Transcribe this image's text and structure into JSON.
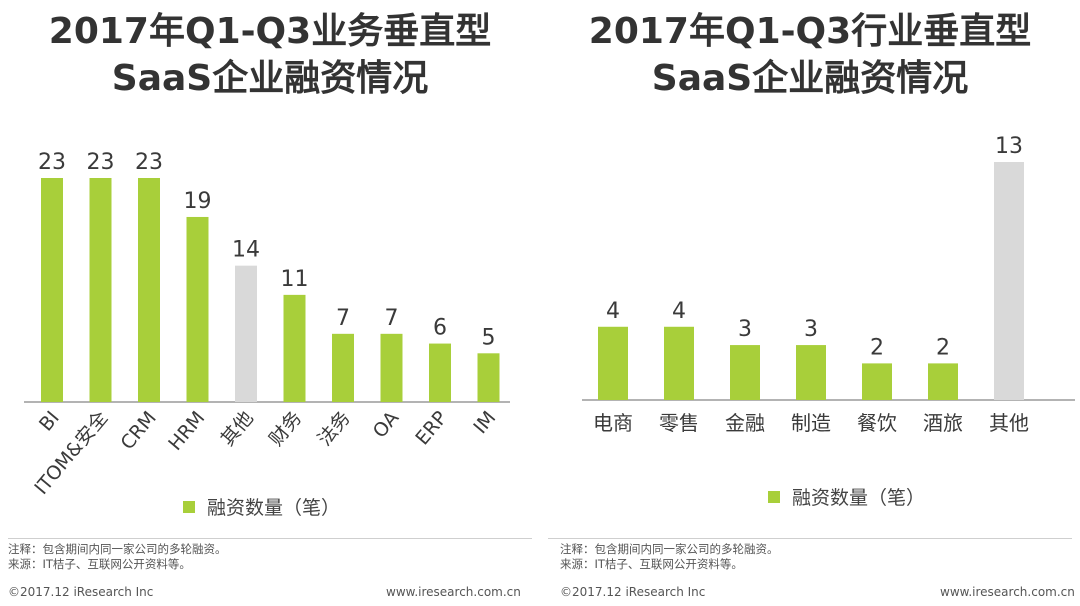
{
  "colors": {
    "bar": "#a8cf3a",
    "other": "#d9d9d9",
    "axis": "#9a9a9a"
  },
  "left": {
    "title_line1": "2017年Q1-Q3业务垂直型",
    "title_line2": "SaaS企业融资情况",
    "legend": "融资数量（笔）",
    "note1": "注释：包含期间内同一家公司的多轮融资。",
    "note2": "来源：IT桔子、互联网公开资料等。",
    "copyright": "©2017.12 iResearch Inc",
    "site": "www.iresearch.com.cn"
  },
  "right": {
    "title_line1": "2017年Q1-Q3行业垂直型",
    "title_line2": "SaaS企业融资情况",
    "legend": "融资数量（笔）",
    "note1": "注释：包含期间内同一家公司的多轮融资。",
    "note2": "来源：IT桔子、互联网公开资料等。",
    "copyright": "©2017.12 iResearch Inc",
    "site": "www.iresearch.com.cn"
  },
  "chart_data": [
    {
      "type": "bar",
      "title": "2017年Q1-Q3业务垂直型SaaS企业融资情况",
      "categories": [
        "BI",
        "ITOM&安全",
        "CRM",
        "HRM",
        "其他",
        "财务",
        "法务",
        "OA",
        "ERP",
        "IM"
      ],
      "series": [
        {
          "name": "融资数量（笔）",
          "values": [
            23,
            23,
            23,
            19,
            14,
            11,
            7,
            7,
            6,
            5
          ]
        }
      ],
      "highlight_gray": [
        "其他"
      ],
      "ylim": [
        0,
        25
      ],
      "grid": false,
      "legend_position": "bottom",
      "xlabel": "",
      "ylabel": ""
    },
    {
      "type": "bar",
      "title": "2017年Q1-Q3行业垂直型SaaS企业融资情况",
      "categories": [
        "电商",
        "零售",
        "金融",
        "制造",
        "餐饮",
        "酒旅",
        "其他"
      ],
      "series": [
        {
          "name": "融资数量（笔）",
          "values": [
            4,
            4,
            3,
            3,
            2,
            2,
            13
          ]
        }
      ],
      "highlight_gray": [
        "其他"
      ],
      "ylim": [
        0,
        14
      ],
      "grid": false,
      "legend_position": "bottom",
      "xlabel": "",
      "ylabel": ""
    }
  ]
}
